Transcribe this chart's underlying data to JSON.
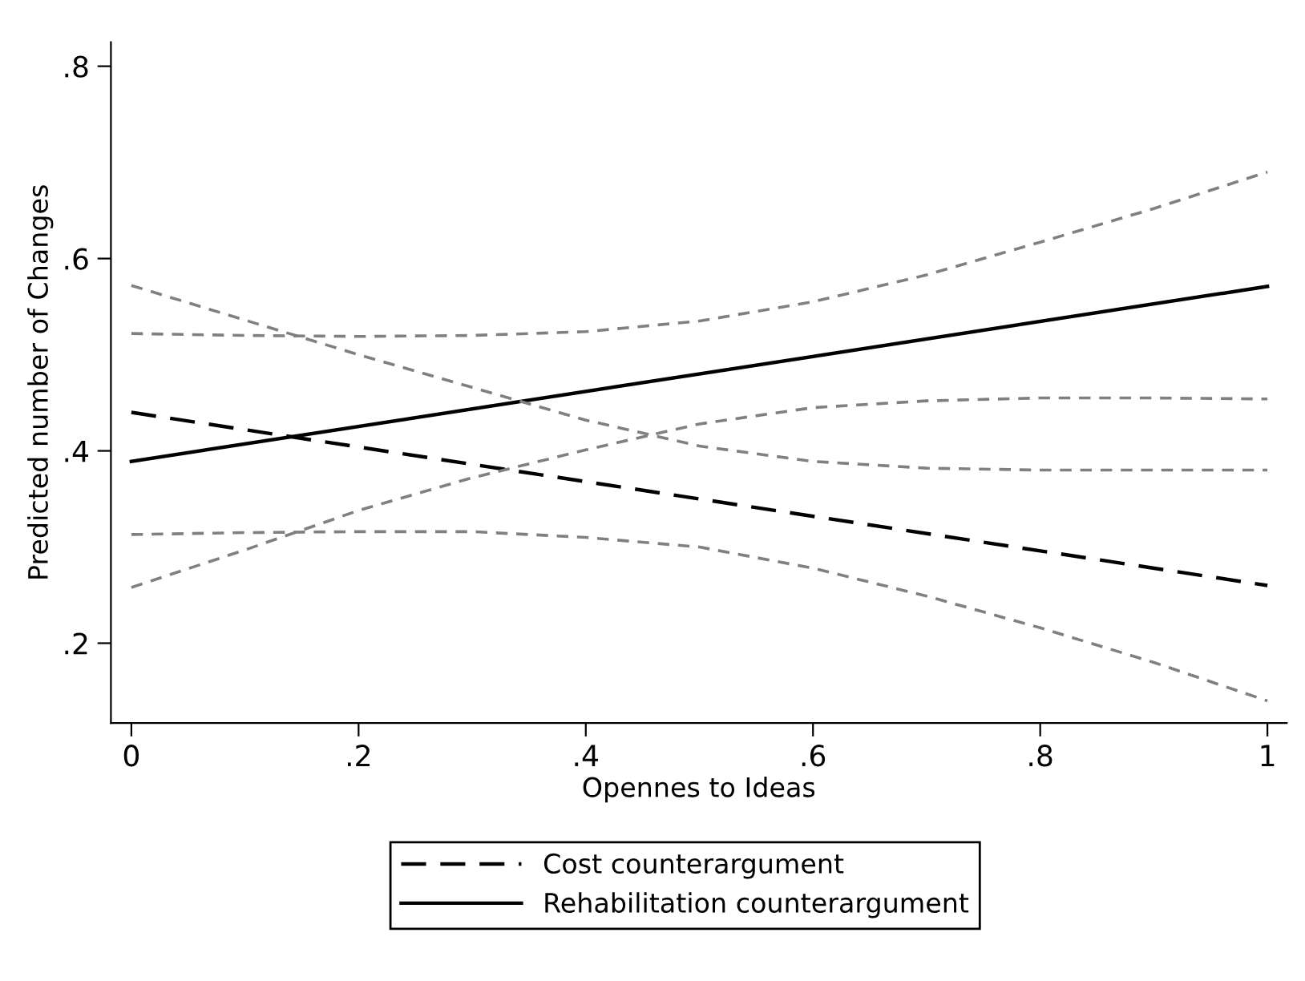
{
  "chart_data": {
    "type": "line",
    "xlabel": "Opennes to Ideas",
    "ylabel": "Predicted number of Changes",
    "xlim": [
      -0.018,
      1.017
    ],
    "ylim": [
      0.117,
      0.825
    ],
    "xticks": [
      0,
      {
        "value": 0.2,
        "label": ".2"
      },
      {
        "value": 0.4,
        "label": ".4"
      },
      {
        "value": 0.6,
        "label": ".6"
      },
      {
        "value": 0.8,
        "label": ".8"
      },
      1
    ],
    "yticks": [
      {
        "value": 0.2,
        "label": ".2"
      },
      {
        "value": 0.4,
        "label": ".4"
      },
      {
        "value": 0.6,
        "label": ".6"
      },
      {
        "value": 0.8,
        "label": ".8"
      }
    ],
    "grid": false,
    "legend": "bottom",
    "marker": "none",
    "series": [
      {
        "name": "Cost counterargument",
        "color": "#000000",
        "line_style": "dashed",
        "x": [
          0,
          1
        ],
        "values": [
          0.44,
          0.26
        ]
      },
      {
        "name": "Rehabilitation counterargument",
        "color": "#000000",
        "line_style": "solid",
        "x": [
          0,
          1
        ],
        "values": [
          0.389,
          0.571
        ]
      },
      {
        "color": "#808080",
        "line_style": "dashed",
        "x": [
          0,
          0.1,
          0.2,
          0.3,
          0.4,
          0.5,
          0.6,
          0.7,
          0.8,
          0.9,
          1
        ],
        "values": [
          0.522,
          0.52,
          0.519,
          0.52,
          0.524,
          0.535,
          0.555,
          0.583,
          0.617,
          0.652,
          0.69
        ]
      },
      {
        "color": "#808080",
        "line_style": "dashed",
        "x": [
          0,
          0.1,
          0.2,
          0.3,
          0.4,
          0.5,
          0.6,
          0.7,
          0.8,
          0.9,
          1
        ],
        "values": [
          0.258,
          0.297,
          0.338,
          0.372,
          0.401,
          0.428,
          0.445,
          0.452,
          0.455,
          0.455,
          0.454
        ]
      },
      {
        "color": "#808080",
        "line_style": "dashed",
        "x": [
          0,
          0.1,
          0.2,
          0.3,
          0.4,
          0.5,
          0.6,
          0.7,
          0.8,
          0.9,
          1
        ],
        "values": [
          0.572,
          0.536,
          0.5,
          0.466,
          0.432,
          0.405,
          0.389,
          0.382,
          0.38,
          0.38,
          0.38
        ]
      },
      {
        "color": "#808080",
        "line_style": "dashed",
        "x": [
          0,
          0.1,
          0.2,
          0.3,
          0.4,
          0.5,
          0.6,
          0.7,
          0.8,
          0.9,
          1
        ],
        "values": [
          0.313,
          0.315,
          0.316,
          0.316,
          0.31,
          0.3,
          0.278,
          0.249,
          0.216,
          0.18,
          0.14
        ]
      }
    ]
  }
}
